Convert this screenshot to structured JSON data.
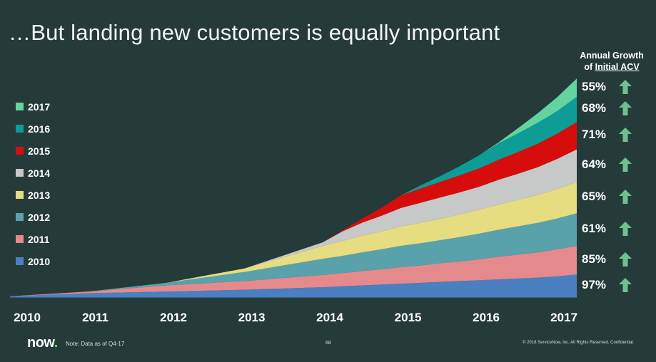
{
  "title": "…But landing new customers is equally important",
  "growth_header": {
    "line1": "Annual Growth",
    "line2_prefix": "of ",
    "line2_underlined": "Initial ACV"
  },
  "chart_data": {
    "type": "area",
    "stacked": true,
    "x": [
      2010.0,
      2011.0,
      2012.0,
      2013.0,
      2014.0,
      2014.25,
      2014.5,
      2014.75,
      2015.0,
      2015.25,
      2015.5,
      2015.75,
      2016.0,
      2016.25,
      2016.5,
      2016.75,
      2017.0,
      2017.25
    ],
    "x_ticks": [
      "2010",
      "2011",
      "2012",
      "2013",
      "2014",
      "2015",
      "2016",
      "2017"
    ],
    "x_tick_values": [
      2010,
      2011,
      2012,
      2013,
      2014,
      2015,
      2016,
      2017
    ],
    "series": [
      {
        "name": "2010",
        "color": "#4a7fc2",
        "values": [
          0.2,
          0.9,
          1.3,
          1.7,
          2.3,
          2.5,
          2.7,
          2.9,
          3.1,
          3.3,
          3.5,
          3.7,
          3.9,
          4.1,
          4.3,
          4.5,
          4.8,
          5.2
        ]
      },
      {
        "name": "2011",
        "color": "#e58a8c",
        "values": [
          0,
          0.4,
          1.4,
          2.0,
          2.8,
          3.0,
          3.3,
          3.5,
          3.8,
          4.0,
          4.3,
          4.5,
          4.8,
          5.2,
          5.5,
          5.8,
          6.2,
          6.6
        ]
      },
      {
        "name": "2012",
        "color": "#5aa2ab",
        "values": [
          0,
          0,
          0.6,
          2.1,
          3.7,
          4.0,
          4.3,
          4.6,
          4.9,
          5.1,
          5.3,
          5.6,
          5.9,
          6.2,
          6.5,
          6.8,
          7.1,
          7.5
        ]
      },
      {
        "name": "2013",
        "color": "#e6dd80",
        "values": [
          0,
          0,
          0,
          0.8,
          3.0,
          3.4,
          3.8,
          4.1,
          4.5,
          4.7,
          4.9,
          5.2,
          5.5,
          5.8,
          6.1,
          6.4,
          6.8,
          7.2
        ]
      },
      {
        "name": "2014",
        "color": "#c7c9c8",
        "values": [
          0,
          0,
          0,
          0,
          0.8,
          2.2,
          3.0,
          3.6,
          4.2,
          4.6,
          4.9,
          5.1,
          5.3,
          5.7,
          6.0,
          6.4,
          6.9,
          7.5
        ]
      },
      {
        "name": "2015",
        "color": "#d70d0d",
        "values": [
          0,
          0,
          0,
          0,
          0,
          0.2,
          0.9,
          1.8,
          2.9,
          3.3,
          3.6,
          3.9,
          4.2,
          4.6,
          5.0,
          5.4,
          5.8,
          6.3
        ]
      },
      {
        "name": "2016",
        "color": "#0e9c96",
        "values": [
          0,
          0,
          0,
          0,
          0,
          0,
          0,
          0,
          0,
          0.7,
          1.3,
          2.1,
          3.0,
          3.8,
          4.3,
          4.8,
          5.2,
          5.8
        ]
      },
      {
        "name": "2017",
        "color": "#63d49f",
        "values": [
          0,
          0,
          0,
          0,
          0,
          0,
          0,
          0,
          0,
          0,
          0,
          0,
          0,
          0.2,
          1.2,
          2.2,
          3.2,
          4.2
        ]
      }
    ]
  },
  "growth_rates": [
    {
      "series": "2017",
      "label": "55%"
    },
    {
      "series": "2016",
      "label": "68%"
    },
    {
      "series": "2015",
      "label": "71%"
    },
    {
      "series": "2014",
      "label": "64%"
    },
    {
      "series": "2013",
      "label": "65%"
    },
    {
      "series": "2012",
      "label": "61%"
    },
    {
      "series": "2011",
      "label": "85%"
    },
    {
      "series": "2010",
      "label": "97%"
    }
  ],
  "arrow_color": "#6fbf91",
  "footer": {
    "logo_text": "now",
    "logo_dot": ".",
    "logo_dot_color": "#62d84e",
    "note": "Note: Data as of Q4-17",
    "page_number": "68",
    "copyright": "© 2018 ServiceNow, Inc. All Rights Reserved. Confidential."
  }
}
